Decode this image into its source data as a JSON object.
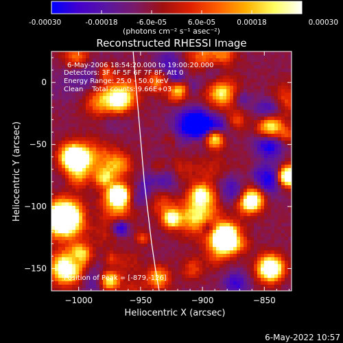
{
  "colorbar": {
    "tick_labels": [
      "-0.00030",
      "-0.00018",
      "-6.0e-05",
      "6.0e-05",
      "0.00018",
      "0.00030"
    ],
    "tick_values": [
      -0.0003,
      -0.00018,
      -6e-05,
      6e-05,
      0.00018,
      0.0003
    ],
    "range": [
      -0.0003,
      0.0003
    ],
    "units_label": "(photons cm⁻² s⁻¹ asec⁻²)",
    "colors": [
      "#0000ff",
      "#4400cc",
      "#5a16a0",
      "#7a1a6a",
      "#a01010",
      "#e02000",
      "#ff6000",
      "#ffb000",
      "#ffff60",
      "#ffffff"
    ]
  },
  "chart_data": {
    "type": "heatmap",
    "title": "Reconstructed RHESSI Image",
    "xlabel": "Heliocentric X (arcsec)",
    "ylabel": "Heliocentric Y (arcsec)",
    "xlim": [
      -1022,
      -828
    ],
    "ylim": [
      -168,
      25
    ],
    "x_ticks": [
      -1000,
      -950,
      -900,
      -850
    ],
    "y_ticks": [
      0,
      -50,
      -100,
      -150
    ],
    "x_tick_labels": [
      "−1000",
      "−950",
      "−900",
      "−850"
    ],
    "y_tick_labels": [
      "0",
      "−50",
      "−100",
      "−150"
    ],
    "annotations": [
      "6-May-2006 18:54:20.000 to 19:00:20.000",
      "Detectors: 3F 4F 5F 6F 7F 8F, Att 0",
      "Energy Range: 25.0 - 50.0 keV",
      "Clean    Total counts: 9.66E+03"
    ],
    "peak_label": "Position of Peak = [-879,-126]",
    "peak_position": [
      -879,
      -126
    ],
    "limb_curve": {
      "x": [
        -956,
        -953,
        -950,
        -947,
        -944,
        -941,
        -938,
        -935
      ],
      "y": [
        25,
        -10,
        -45,
        -80,
        -105,
        -130,
        -150,
        -168
      ]
    },
    "grid": false
  },
  "footer": {
    "timestamp": "6-May-2022 10:57"
  }
}
